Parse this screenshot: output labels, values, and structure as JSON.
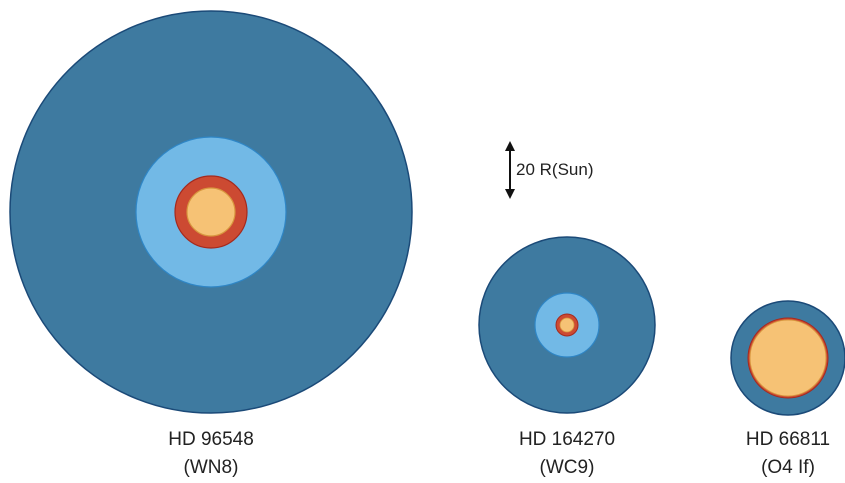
{
  "stars": [
    {
      "name": "HD 96548",
      "type": "(WN8)",
      "layers": {
        "wind": "#3e7aa0",
        "inner_wind": "#72b9e6",
        "hot_shell": "#cc4a32",
        "core": "#f6c275"
      }
    },
    {
      "name": "HD 164270",
      "type": "(WC9)",
      "layers": {
        "wind": "#3e7aa0",
        "inner_wind": "#72b9e6",
        "hot_shell": "#cc4a32",
        "core": "#f6c275"
      }
    },
    {
      "name": "HD 66811",
      "type": "(O4 If)",
      "layers": {
        "wind": "#3e7aa0",
        "hot_shell": "#cc4a32",
        "core": "#f6c275"
      }
    }
  ],
  "scale_bar": {
    "label": "20 R(Sun)"
  },
  "colors": {
    "outline": "#1b4a78",
    "inner_outline": "#2f86c6",
    "shell_outline": "#a52a1e",
    "core_outline": "#d8963e"
  }
}
